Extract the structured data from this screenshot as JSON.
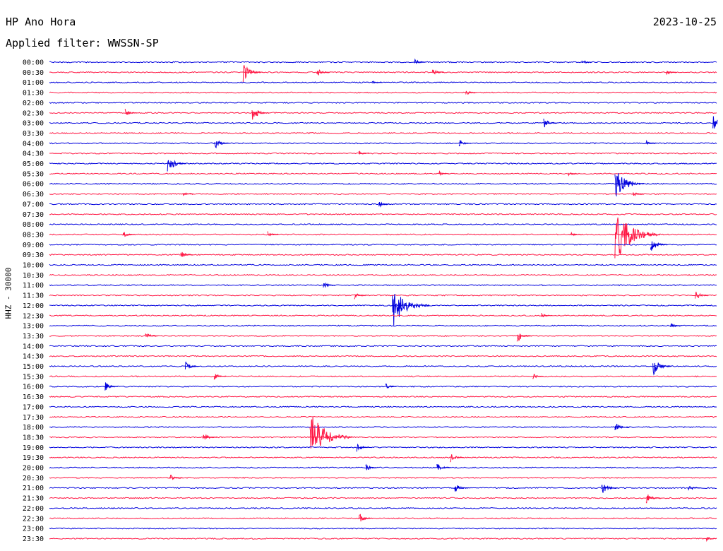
{
  "header": {
    "station": "HP Ano Hora",
    "date": "2023-10-25",
    "filter": "Applied filter: WWSSN-SP"
  },
  "colors": {
    "trace_a": "#0000dd",
    "trace_b": "#ff1744",
    "text": "#000000"
  },
  "chart_data": {
    "type": "line",
    "title": "HP Ano Hora",
    "subtitle": "Applied filter: WWSSN-SP",
    "ylabel": "HHZ - 30000",
    "row_labels": [
      "00:00",
      "00:30",
      "01:00",
      "01:30",
      "02:00",
      "02:30",
      "03:00",
      "03:30",
      "04:00",
      "04:30",
      "05:00",
      "05:30",
      "06:00",
      "06:30",
      "07:00",
      "07:30",
      "08:00",
      "08:30",
      "09:00",
      "09:30",
      "10:00",
      "10:30",
      "11:00",
      "11:30",
      "12:00",
      "12:30",
      "13:00",
      "13:30",
      "14:00",
      "14:30",
      "15:00",
      "15:30",
      "16:00",
      "16:30",
      "17:00",
      "17:30",
      "18:00",
      "18:30",
      "19:00",
      "19:30",
      "20:00",
      "20:30",
      "21:00",
      "21:30",
      "22:00",
      "22:30",
      "23:00",
      "23:30"
    ],
    "x_range_minutes": [
      0,
      30
    ],
    "series_colors_alternate": [
      "#0000dd",
      "#ff1744"
    ],
    "events": [
      {
        "row": "00:00",
        "minute": 16.4,
        "amp": 6
      },
      {
        "row": "00:00",
        "minute": 23.9,
        "amp": 5
      },
      {
        "row": "00:30",
        "minute": 8.7,
        "amp": 15
      },
      {
        "row": "00:30",
        "minute": 12.0,
        "amp": 7
      },
      {
        "row": "00:30",
        "minute": 17.2,
        "amp": 6
      },
      {
        "row": "00:30",
        "minute": 27.7,
        "amp": 5
      },
      {
        "row": "01:00",
        "minute": 14.5,
        "amp": 3
      },
      {
        "row": "01:30",
        "minute": 18.7,
        "amp": 5
      },
      {
        "row": "02:30",
        "minute": 3.4,
        "amp": 6
      },
      {
        "row": "02:30",
        "minute": 9.1,
        "amp": 12
      },
      {
        "row": "03:00",
        "minute": 22.2,
        "amp": 8
      },
      {
        "row": "03:00",
        "minute": 29.8,
        "amp": 12
      },
      {
        "row": "04:00",
        "minute": 7.4,
        "amp": 10
      },
      {
        "row": "04:00",
        "minute": 18.4,
        "amp": 6
      },
      {
        "row": "04:00",
        "minute": 26.8,
        "amp": 4
      },
      {
        "row": "04:30",
        "minute": 13.9,
        "amp": 4
      },
      {
        "row": "05:00",
        "minute": 5.3,
        "amp": 14
      },
      {
        "row": "05:30",
        "minute": 17.5,
        "amp": 4
      },
      {
        "row": "05:30",
        "minute": 23.3,
        "amp": 3
      },
      {
        "row": "06:00",
        "minute": 25.4,
        "amp": 26
      },
      {
        "row": "06:30",
        "minute": 6.0,
        "amp": 4
      },
      {
        "row": "06:30",
        "minute": 26.2,
        "amp": 5
      },
      {
        "row": "07:00",
        "minute": 14.8,
        "amp": 5
      },
      {
        "row": "08:30",
        "minute": 3.3,
        "amp": 6
      },
      {
        "row": "08:30",
        "minute": 9.8,
        "amp": 5
      },
      {
        "row": "08:30",
        "minute": 23.4,
        "amp": 4
      },
      {
        "row": "08:30",
        "minute": 25.4,
        "amp": 45
      },
      {
        "row": "09:00",
        "minute": 27.0,
        "amp": 12
      },
      {
        "row": "09:30",
        "minute": 5.9,
        "amp": 6
      },
      {
        "row": "11:00",
        "minute": 12.3,
        "amp": 6
      },
      {
        "row": "11:30",
        "minute": 13.7,
        "amp": 6
      },
      {
        "row": "11:30",
        "minute": 29.0,
        "amp": 8
      },
      {
        "row": "12:00",
        "minute": 15.4,
        "amp": 35
      },
      {
        "row": "12:30",
        "minute": 22.1,
        "amp": 5
      },
      {
        "row": "13:00",
        "minute": 27.9,
        "amp": 5
      },
      {
        "row": "13:30",
        "minute": 4.3,
        "amp": 7
      },
      {
        "row": "13:30",
        "minute": 21.0,
        "amp": 10
      },
      {
        "row": "15:00",
        "minute": 6.1,
        "amp": 8
      },
      {
        "row": "15:00",
        "minute": 27.1,
        "amp": 14
      },
      {
        "row": "15:30",
        "minute": 7.4,
        "amp": 6
      },
      {
        "row": "15:30",
        "minute": 21.7,
        "amp": 5
      },
      {
        "row": "16:00",
        "minute": 2.5,
        "amp": 7
      },
      {
        "row": "16:00",
        "minute": 15.1,
        "amp": 5
      },
      {
        "row": "18:00",
        "minute": 25.4,
        "amp": 8
      },
      {
        "row": "18:30",
        "minute": 6.9,
        "amp": 8
      },
      {
        "row": "18:30",
        "minute": 11.7,
        "amp": 42
      },
      {
        "row": "19:00",
        "minute": 13.8,
        "amp": 7
      },
      {
        "row": "19:30",
        "minute": 18.0,
        "amp": 8
      },
      {
        "row": "20:00",
        "minute": 14.2,
        "amp": 6
      },
      {
        "row": "20:00",
        "minute": 17.4,
        "amp": 8
      },
      {
        "row": "20:30",
        "minute": 5.4,
        "amp": 6
      },
      {
        "row": "21:00",
        "minute": 18.2,
        "amp": 8
      },
      {
        "row": "21:00",
        "minute": 24.8,
        "amp": 10
      },
      {
        "row": "21:00",
        "minute": 28.7,
        "amp": 6
      },
      {
        "row": "21:30",
        "minute": 26.8,
        "amp": 9
      },
      {
        "row": "22:30",
        "minute": 13.9,
        "amp": 8
      },
      {
        "row": "23:30",
        "minute": 29.5,
        "amp": 4
      }
    ]
  }
}
